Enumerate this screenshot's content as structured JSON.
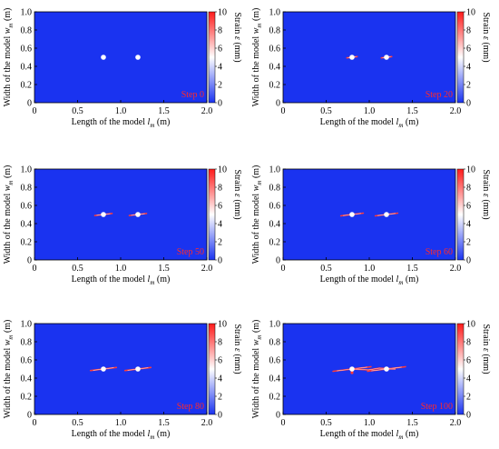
{
  "chart_data": [
    {
      "type": "heatmap",
      "step_label": "Step 0",
      "xlabel": "Length of the model",
      "xlabel_symbol": "l",
      "xlabel_sub": "m",
      "xlabel_unit": "(m)",
      "ylabel": "Width of the model",
      "ylabel_symbol": "w",
      "ylabel_sub": "m",
      "ylabel_unit": "(m)",
      "x_ticks": [
        "0",
        "0.5",
        "1.0",
        "1.5",
        "2.0"
      ],
      "y_ticks": [
        "0",
        "0.2",
        "0.4",
        "0.6",
        "0.8",
        "1.0"
      ],
      "xlim": [
        0,
        2
      ],
      "ylim": [
        0,
        1
      ],
      "colorbar_label": "Strain",
      "colorbar_symbol": "ε",
      "colorbar_unit": "(mm)",
      "colorbar_ticks": [
        "0",
        "2",
        "4",
        "6",
        "8",
        "10"
      ],
      "colorbar_range": [
        0,
        10
      ],
      "background_color": "#1a33f0",
      "holes": [
        {
          "x": 0.8,
          "y": 0.5
        },
        {
          "x": 1.2,
          "y": 0.5
        }
      ],
      "crack_extent": 0
    },
    {
      "type": "heatmap",
      "step_label": "Step 20",
      "xlabel": "Length of the model",
      "xlabel_symbol": "l",
      "xlabel_sub": "m",
      "xlabel_unit": "(m)",
      "ylabel": "Width of the model",
      "ylabel_symbol": "w",
      "ylabel_sub": "m",
      "ylabel_unit": "(m)",
      "x_ticks": [
        "0",
        "0.5",
        "1.0",
        "1.5",
        "2.0"
      ],
      "y_ticks": [
        "0",
        "0.2",
        "0.4",
        "0.6",
        "0.8",
        "1.0"
      ],
      "xlim": [
        0,
        2
      ],
      "ylim": [
        0,
        1
      ],
      "colorbar_label": "Strain",
      "colorbar_symbol": "ε",
      "colorbar_unit": "(mm)",
      "colorbar_ticks": [
        "0",
        "2",
        "4",
        "6",
        "8",
        "10"
      ],
      "colorbar_range": [
        0,
        10
      ],
      "background_color": "#1a33f0",
      "holes": [
        {
          "x": 0.8,
          "y": 0.5
        },
        {
          "x": 1.2,
          "y": 0.5
        }
      ],
      "crack_extent": 0.06
    },
    {
      "type": "heatmap",
      "step_label": "Step 50",
      "xlabel": "Length of the model",
      "xlabel_symbol": "l",
      "xlabel_sub": "m",
      "xlabel_unit": "(m)",
      "ylabel": "Width of the model",
      "ylabel_symbol": "w",
      "ylabel_sub": "m",
      "ylabel_unit": "(m)",
      "x_ticks": [
        "0",
        "0.5",
        "1.0",
        "1.5",
        "2.0"
      ],
      "y_ticks": [
        "0",
        "0.2",
        "0.4",
        "0.6",
        "0.8",
        "1.0"
      ],
      "xlim": [
        0,
        2
      ],
      "ylim": [
        0,
        1
      ],
      "colorbar_label": "Strain",
      "colorbar_symbol": "ε",
      "colorbar_unit": "(mm)",
      "colorbar_ticks": [
        "0",
        "2",
        "4",
        "6",
        "8",
        "10"
      ],
      "colorbar_range": [
        0,
        10
      ],
      "background_color": "#1a33f0",
      "holes": [
        {
          "x": 0.8,
          "y": 0.5
        },
        {
          "x": 1.2,
          "y": 0.5
        }
      ],
      "crack_extent": 0.1
    },
    {
      "type": "heatmap",
      "step_label": "Step 60",
      "xlabel": "Length of the model",
      "xlabel_symbol": "l",
      "xlabel_sub": "m",
      "xlabel_unit": "(m)",
      "ylabel": "Width of the model",
      "ylabel_symbol": "w",
      "ylabel_sub": "m",
      "ylabel_unit": "(m)",
      "x_ticks": [
        "0",
        "0.5",
        "1.0",
        "1.5",
        "2.0"
      ],
      "y_ticks": [
        "0",
        "0.2",
        "0.4",
        "0.6",
        "0.8",
        "1.0"
      ],
      "xlim": [
        0,
        2
      ],
      "ylim": [
        0,
        1
      ],
      "colorbar_label": "Strain",
      "colorbar_symbol": "ε",
      "colorbar_unit": "(mm)",
      "colorbar_ticks": [
        "0",
        "2",
        "4",
        "6",
        "8",
        "10"
      ],
      "colorbar_range": [
        0,
        10
      ],
      "background_color": "#1a33f0",
      "holes": [
        {
          "x": 0.8,
          "y": 0.5
        },
        {
          "x": 1.2,
          "y": 0.5
        }
      ],
      "crack_extent": 0.13
    },
    {
      "type": "heatmap",
      "step_label": "Step 80",
      "xlabel": "Length of the model",
      "xlabel_symbol": "l",
      "xlabel_sub": "m",
      "xlabel_unit": "(m)",
      "ylabel": "Width of the model",
      "ylabel_symbol": "w",
      "ylabel_sub": "m",
      "ylabel_unit": "(m)",
      "x_ticks": [
        "0",
        "0.5",
        "1.0",
        "1.5",
        "2.0"
      ],
      "y_ticks": [
        "0",
        "0.2",
        "0.4",
        "0.6",
        "0.8",
        "1.0"
      ],
      "xlim": [
        0,
        2
      ],
      "ylim": [
        0,
        1
      ],
      "colorbar_label": "Strain",
      "colorbar_symbol": "ε",
      "colorbar_unit": "(mm)",
      "colorbar_ticks": [
        "0",
        "2",
        "4",
        "6",
        "8",
        "10"
      ],
      "colorbar_range": [
        0,
        10
      ],
      "background_color": "#1a33f0",
      "holes": [
        {
          "x": 0.8,
          "y": 0.5
        },
        {
          "x": 1.2,
          "y": 0.5
        }
      ],
      "crack_extent": 0.15
    },
    {
      "type": "heatmap",
      "step_label": "Step 100",
      "xlabel": "Length of the model",
      "xlabel_symbol": "l",
      "xlabel_sub": "m",
      "xlabel_unit": "(m)",
      "ylabel": "Width of the model",
      "ylabel_symbol": "w",
      "ylabel_sub": "m",
      "ylabel_unit": "(m)",
      "x_ticks": [
        "0",
        "0.5",
        "1.0",
        "1.5",
        "2.0"
      ],
      "y_ticks": [
        "0",
        "0.2",
        "0.4",
        "0.6",
        "0.8",
        "1.0"
      ],
      "xlim": [
        0,
        2
      ],
      "ylim": [
        0,
        1
      ],
      "colorbar_label": "Strain",
      "colorbar_symbol": "ε",
      "colorbar_unit": "(mm)",
      "colorbar_ticks": [
        "0",
        "2",
        "4",
        "6",
        "8",
        "10"
      ],
      "colorbar_range": [
        0,
        10
      ],
      "background_color": "#1a33f0",
      "holes": [
        {
          "x": 0.8,
          "y": 0.5
        },
        {
          "x": 1.2,
          "y": 0.5
        }
      ],
      "crack_extent": 0.22,
      "coalesced": true
    }
  ]
}
